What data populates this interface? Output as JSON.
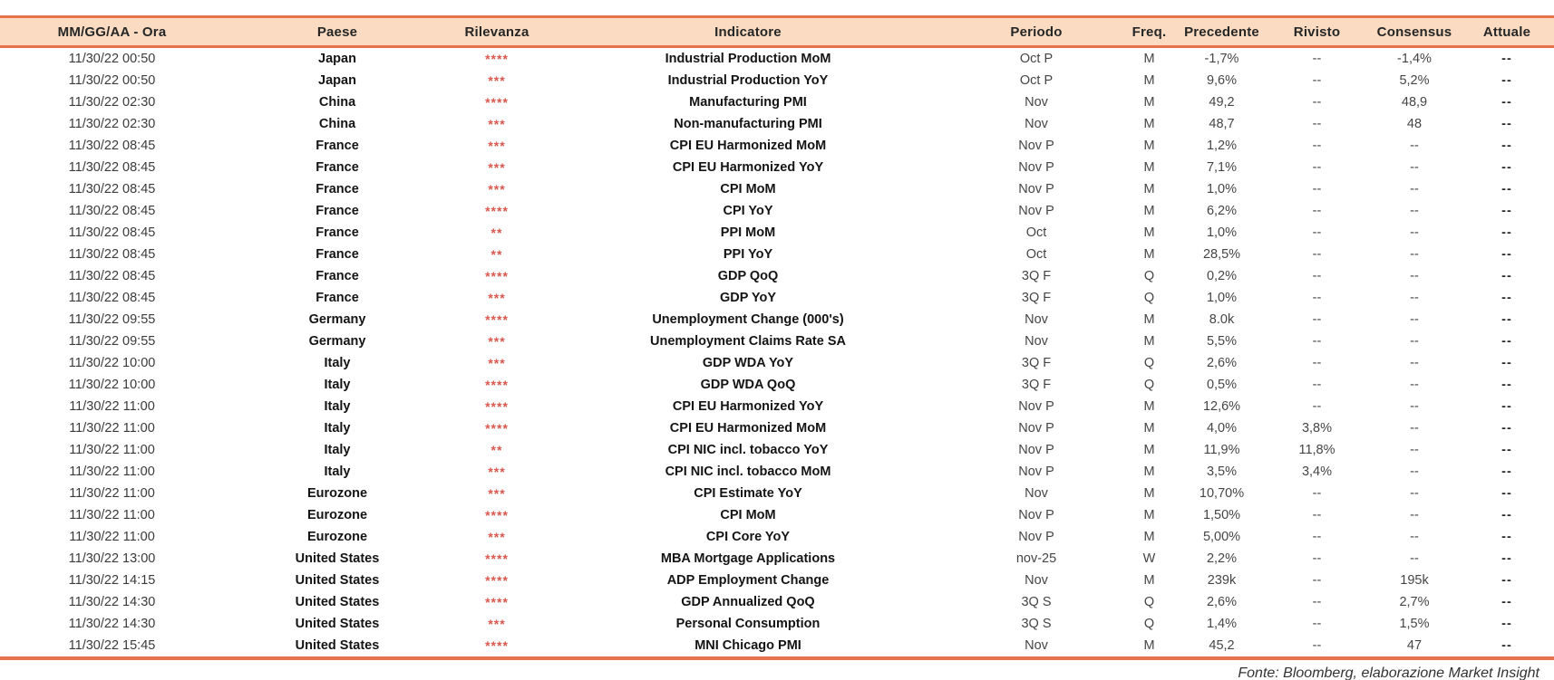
{
  "chart_data": {
    "type": "table",
    "columns": [
      "MM/GG/AA - Ora",
      "Paese",
      "Rilevanza",
      "Indicatore",
      "Periodo",
      "Freq.",
      "Precedente",
      "Rivisto",
      "Consensus",
      "Attuale"
    ],
    "rows": [
      {
        "datetime": "11/30/22 00:50",
        "paese": "Japan",
        "rilevanza": "****",
        "indicatore": "Industrial Production MoM",
        "periodo": "Oct P",
        "freq": "M",
        "precedente": "-1,7%",
        "rivisto": "--",
        "consensus": "-1,4%",
        "attuale": "--"
      },
      {
        "datetime": "11/30/22 00:50",
        "paese": "Japan",
        "rilevanza": "***",
        "indicatore": "Industrial Production YoY",
        "periodo": "Oct P",
        "freq": "M",
        "precedente": "9,6%",
        "rivisto": "--",
        "consensus": "5,2%",
        "attuale": "--"
      },
      {
        "datetime": "11/30/22 02:30",
        "paese": "China",
        "rilevanza": "****",
        "indicatore": "Manufacturing PMI",
        "periodo": "Nov",
        "freq": "M",
        "precedente": "49,2",
        "rivisto": "--",
        "consensus": "48,9",
        "attuale": "--"
      },
      {
        "datetime": "11/30/22 02:30",
        "paese": "China",
        "rilevanza": "***",
        "indicatore": "Non-manufacturing PMI",
        "periodo": "Nov",
        "freq": "M",
        "precedente": "48,7",
        "rivisto": "--",
        "consensus": "48",
        "attuale": "--"
      },
      {
        "datetime": "11/30/22 08:45",
        "paese": "France",
        "rilevanza": "***",
        "indicatore": "CPI EU Harmonized MoM",
        "periodo": "Nov P",
        "freq": "M",
        "precedente": "1,2%",
        "rivisto": "--",
        "consensus": "--",
        "attuale": "--"
      },
      {
        "datetime": "11/30/22 08:45",
        "paese": "France",
        "rilevanza": "***",
        "indicatore": "CPI EU Harmonized YoY",
        "periodo": "Nov P",
        "freq": "M",
        "precedente": "7,1%",
        "rivisto": "--",
        "consensus": "--",
        "attuale": "--"
      },
      {
        "datetime": "11/30/22 08:45",
        "paese": "France",
        "rilevanza": "***",
        "indicatore": "CPI MoM",
        "periodo": "Nov P",
        "freq": "M",
        "precedente": "1,0%",
        "rivisto": "--",
        "consensus": "--",
        "attuale": "--"
      },
      {
        "datetime": "11/30/22 08:45",
        "paese": "France",
        "rilevanza": "****",
        "indicatore": "CPI YoY",
        "periodo": "Nov P",
        "freq": "M",
        "precedente": "6,2%",
        "rivisto": "--",
        "consensus": "--",
        "attuale": "--"
      },
      {
        "datetime": "11/30/22 08:45",
        "paese": "France",
        "rilevanza": "**",
        "indicatore": "PPI MoM",
        "periodo": "Oct",
        "freq": "M",
        "precedente": "1,0%",
        "rivisto": "--",
        "consensus": "--",
        "attuale": "--"
      },
      {
        "datetime": "11/30/22 08:45",
        "paese": "France",
        "rilevanza": "**",
        "indicatore": "PPI YoY",
        "periodo": "Oct",
        "freq": "M",
        "precedente": "28,5%",
        "rivisto": "--",
        "consensus": "--",
        "attuale": "--"
      },
      {
        "datetime": "11/30/22 08:45",
        "paese": "France",
        "rilevanza": "****",
        "indicatore": "GDP QoQ",
        "periodo": "3Q F",
        "freq": "Q",
        "precedente": "0,2%",
        "rivisto": "--",
        "consensus": "--",
        "attuale": "--"
      },
      {
        "datetime": "11/30/22 08:45",
        "paese": "France",
        "rilevanza": "***",
        "indicatore": "GDP YoY",
        "periodo": "3Q F",
        "freq": "Q",
        "precedente": "1,0%",
        "rivisto": "--",
        "consensus": "--",
        "attuale": "--"
      },
      {
        "datetime": "11/30/22 09:55",
        "paese": "Germany",
        "rilevanza": "****",
        "indicatore": "Unemployment Change (000's)",
        "periodo": "Nov",
        "freq": "M",
        "precedente": "8.0k",
        "rivisto": "--",
        "consensus": "--",
        "attuale": "--"
      },
      {
        "datetime": "11/30/22 09:55",
        "paese": "Germany",
        "rilevanza": "***",
        "indicatore": "Unemployment Claims Rate SA",
        "periodo": "Nov",
        "freq": "M",
        "precedente": "5,5%",
        "rivisto": "--",
        "consensus": "--",
        "attuale": "--"
      },
      {
        "datetime": "11/30/22 10:00",
        "paese": "Italy",
        "rilevanza": "***",
        "indicatore": "GDP WDA YoY",
        "periodo": "3Q F",
        "freq": "Q",
        "precedente": "2,6%",
        "rivisto": "--",
        "consensus": "--",
        "attuale": "--"
      },
      {
        "datetime": "11/30/22 10:00",
        "paese": "Italy",
        "rilevanza": "****",
        "indicatore": "GDP WDA QoQ",
        "periodo": "3Q F",
        "freq": "Q",
        "precedente": "0,5%",
        "rivisto": "--",
        "consensus": "--",
        "attuale": "--"
      },
      {
        "datetime": "11/30/22 11:00",
        "paese": "Italy",
        "rilevanza": "****",
        "indicatore": "CPI EU Harmonized YoY",
        "periodo": "Nov P",
        "freq": "M",
        "precedente": "12,6%",
        "rivisto": "--",
        "consensus": "--",
        "attuale": "--"
      },
      {
        "datetime": "11/30/22 11:00",
        "paese": "Italy",
        "rilevanza": "****",
        "indicatore": "CPI EU Harmonized MoM",
        "periodo": "Nov P",
        "freq": "M",
        "precedente": "4,0%",
        "rivisto": "3,8%",
        "consensus": "--",
        "attuale": "--"
      },
      {
        "datetime": "11/30/22 11:00",
        "paese": "Italy",
        "rilevanza": "**",
        "indicatore": "CPI NIC incl. tobacco YoY",
        "periodo": "Nov P",
        "freq": "M",
        "precedente": "11,9%",
        "rivisto": "11,8%",
        "consensus": "--",
        "attuale": "--"
      },
      {
        "datetime": "11/30/22 11:00",
        "paese": "Italy",
        "rilevanza": "***",
        "indicatore": "CPI NIC incl. tobacco MoM",
        "periodo": "Nov P",
        "freq": "M",
        "precedente": "3,5%",
        "rivisto": "3,4%",
        "consensus": "--",
        "attuale": "--"
      },
      {
        "datetime": "11/30/22 11:00",
        "paese": "Eurozone",
        "rilevanza": "***",
        "indicatore": "CPI Estimate YoY",
        "periodo": "Nov",
        "freq": "M",
        "precedente": "10,70%",
        "rivisto": "--",
        "consensus": "--",
        "attuale": "--"
      },
      {
        "datetime": "11/30/22 11:00",
        "paese": "Eurozone",
        "rilevanza": "****",
        "indicatore": "CPI MoM",
        "periodo": "Nov P",
        "freq": "M",
        "precedente": "1,50%",
        "rivisto": "--",
        "consensus": "--",
        "attuale": "--"
      },
      {
        "datetime": "11/30/22 11:00",
        "paese": "Eurozone",
        "rilevanza": "***",
        "indicatore": "CPI Core YoY",
        "periodo": "Nov P",
        "freq": "M",
        "precedente": "5,00%",
        "rivisto": "--",
        "consensus": "--",
        "attuale": "--"
      },
      {
        "datetime": "11/30/22 13:00",
        "paese": "United States",
        "rilevanza": "****",
        "indicatore": "MBA Mortgage Applications",
        "periodo": "nov-25",
        "freq": "W",
        "precedente": "2,2%",
        "rivisto": "--",
        "consensus": "--",
        "attuale": "--"
      },
      {
        "datetime": "11/30/22 14:15",
        "paese": "United States",
        "rilevanza": "****",
        "indicatore": "ADP Employment Change",
        "periodo": "Nov",
        "freq": "M",
        "precedente": "239k",
        "rivisto": "--",
        "consensus": "195k",
        "attuale": "--"
      },
      {
        "datetime": "11/30/22 14:30",
        "paese": "United States",
        "rilevanza": "****",
        "indicatore": "GDP Annualized QoQ",
        "periodo": "3Q S",
        "freq": "Q",
        "precedente": "2,6%",
        "rivisto": "--",
        "consensus": "2,7%",
        "attuale": "--"
      },
      {
        "datetime": "11/30/22 14:30",
        "paese": "United States",
        "rilevanza": "***",
        "indicatore": "Personal Consumption",
        "periodo": "3Q S",
        "freq": "Q",
        "precedente": "1,4%",
        "rivisto": "--",
        "consensus": "1,5%",
        "attuale": "--"
      },
      {
        "datetime": "11/30/22 15:45",
        "paese": "United States",
        "rilevanza": "****",
        "indicatore": "MNI Chicago PMI",
        "periodo": "Nov",
        "freq": "M",
        "precedente": "45,2",
        "rivisto": "--",
        "consensus": "47",
        "attuale": "--"
      }
    ]
  },
  "footer": {
    "source_note": "Fonte: Bloomberg, elaborazione Market Insight"
  },
  "colors": {
    "header_bg": "#fbdcc2",
    "accent_line": "#e8714d",
    "stars": "#d9584e"
  }
}
